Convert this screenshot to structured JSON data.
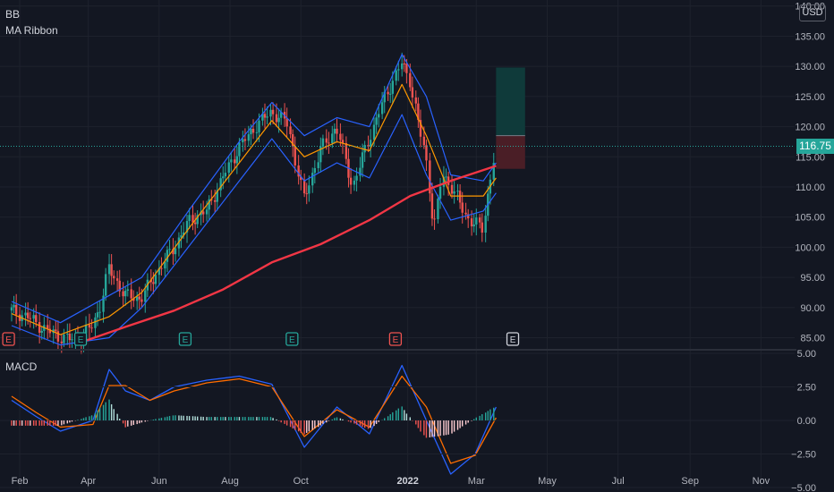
{
  "symbol": "BB",
  "studies": {
    "ribbon": "MA Ribbon",
    "macd": "MACD"
  },
  "currency": "USD",
  "last_price": "116.75",
  "colors": {
    "background": "#131722",
    "grid": "#1e222d",
    "up": "#26a69a",
    "down": "#ef5350",
    "ma_blue": "#2962ff",
    "ma_orange": "#ff9800",
    "ma_red": "#f23645",
    "macd_line": "#2962ff",
    "signal_line": "#ff6d00",
    "target_zone": "#0f3a3a",
    "stop_zone": "#4a1e26"
  },
  "earnings_markers": [
    {
      "label": "E",
      "month": "Jan",
      "kind": "past-down"
    },
    {
      "label": "E",
      "month": "Mar",
      "kind": "past-up"
    },
    {
      "label": "E",
      "month": "Jun",
      "kind": "past-up"
    },
    {
      "label": "E",
      "month": "Sep",
      "kind": "past-up"
    },
    {
      "label": "E",
      "month": "Dec",
      "kind": "past-down"
    },
    {
      "label": "E",
      "month": "Apr",
      "kind": "upcoming"
    }
  ],
  "chart_data": [
    {
      "type": "candlestick",
      "title": "BB",
      "ylim": [
        83,
        141
      ],
      "yticks": [
        "140.00",
        "135.00",
        "130.00",
        "125.00",
        "120.00",
        "115.00",
        "110.00",
        "105.00",
        "100.00",
        "95.00",
        "90.00",
        "85.00"
      ],
      "x_labels": [
        "Feb",
        "Apr",
        "Jun",
        "Aug",
        "Oct",
        "2022",
        "Mar",
        "May",
        "Jul",
        "Sep",
        "Nov"
      ],
      "price_path": [
        [
          "2021-01-25",
          89.5
        ],
        [
          "2021-02-08",
          88.5
        ],
        [
          "2021-02-22",
          86.5
        ],
        [
          "2021-03-08",
          85.2
        ],
        [
          "2021-03-22",
          84.5
        ],
        [
          "2021-04-05",
          87.0
        ],
        [
          "2021-04-12",
          90.5
        ],
        [
          "2021-04-19",
          96.5
        ],
        [
          "2021-05-03",
          92.0
        ],
        [
          "2021-05-17",
          91.5
        ],
        [
          "2021-05-31",
          96.0
        ],
        [
          "2021-06-14",
          100.0
        ],
        [
          "2021-06-28",
          104.5
        ],
        [
          "2021-07-12",
          106.0
        ],
        [
          "2021-07-26",
          111.5
        ],
        [
          "2021-08-09",
          116.5
        ],
        [
          "2021-08-23",
          120.0
        ],
        [
          "2021-09-06",
          122.5
        ],
        [
          "2021-09-20",
          120.5
        ],
        [
          "2021-10-04",
          108.0
        ],
        [
          "2021-10-18",
          116.0
        ],
        [
          "2021-11-01",
          120.0
        ],
        [
          "2021-11-15",
          110.0
        ],
        [
          "2021-11-29",
          118.0
        ],
        [
          "2021-12-13",
          125.0
        ],
        [
          "2021-12-27",
          130.5
        ],
        [
          "2022-01-03",
          128.0
        ],
        [
          "2022-01-10",
          121.0
        ],
        [
          "2022-01-17",
          115.0
        ],
        [
          "2022-01-24",
          103.0
        ],
        [
          "2022-01-31",
          112.0
        ],
        [
          "2022-02-07",
          110.5
        ],
        [
          "2022-02-21",
          105.0
        ],
        [
          "2022-03-07",
          103.0
        ],
        [
          "2022-03-14",
          112.0
        ],
        [
          "2022-03-18",
          116.75
        ]
      ],
      "sma200": [
        [
          "2021-03-22",
          84.0
        ],
        [
          "2021-05-03",
          86.8
        ],
        [
          "2021-06-14",
          89.5
        ],
        [
          "2021-07-26",
          93.0
        ],
        [
          "2021-09-06",
          97.5
        ],
        [
          "2021-10-18",
          100.5
        ],
        [
          "2021-11-29",
          104.5
        ],
        [
          "2022-01-03",
          108.5
        ],
        [
          "2022-02-07",
          111.0
        ],
        [
          "2022-03-18",
          113.5
        ]
      ],
      "bollinger_upper": [
        [
          "2021-01-25",
          91
        ],
        [
          "2021-03-08",
          87.5
        ],
        [
          "2021-04-19",
          92.0
        ],
        [
          "2021-05-17",
          95.0
        ],
        [
          "2021-06-28",
          106.5
        ],
        [
          "2021-08-09",
          117.5
        ],
        [
          "2021-09-06",
          124.0
        ],
        [
          "2021-10-04",
          118.5
        ],
        [
          "2021-11-01",
          121.5
        ],
        [
          "2021-11-29",
          120.0
        ],
        [
          "2021-12-27",
          132.0
        ],
        [
          "2022-01-17",
          125.0
        ],
        [
          "2022-02-07",
          112.0
        ],
        [
          "2022-03-07",
          111.0
        ],
        [
          "2022-03-18",
          114.0
        ]
      ],
      "bollinger_lower": [
        [
          "2021-01-25",
          87
        ],
        [
          "2021-03-08",
          83.8
        ],
        [
          "2021-04-19",
          85.0
        ],
        [
          "2021-05-17",
          90.0
        ],
        [
          "2021-06-28",
          100.5
        ],
        [
          "2021-08-09",
          111.0
        ],
        [
          "2021-09-06",
          118.0
        ],
        [
          "2021-10-04",
          111.0
        ],
        [
          "2021-11-01",
          114.0
        ],
        [
          "2021-11-29",
          111.5
        ],
        [
          "2021-12-27",
          122.0
        ],
        [
          "2022-01-17",
          112.0
        ],
        [
          "2022-02-07",
          104.5
        ],
        [
          "2022-03-07",
          106.0
        ],
        [
          "2022-03-18",
          109.0
        ]
      ],
      "ma_middle": [
        [
          "2021-01-25",
          89
        ],
        [
          "2021-03-08",
          85.5
        ],
        [
          "2021-04-19",
          88.5
        ],
        [
          "2021-05-17",
          92.5
        ],
        [
          "2021-06-28",
          103.5
        ],
        [
          "2021-08-09",
          114.0
        ],
        [
          "2021-09-06",
          121.0
        ],
        [
          "2021-10-04",
          115.0
        ],
        [
          "2021-11-01",
          117.5
        ],
        [
          "2021-11-29",
          116.0
        ],
        [
          "2021-12-27",
          127.0
        ],
        [
          "2022-01-17",
          118.5
        ],
        [
          "2022-02-07",
          108.5
        ],
        [
          "2022-03-07",
          108.5
        ],
        [
          "2022-03-18",
          111.5
        ]
      ],
      "position": {
        "entry": 118.5,
        "target": 129.8,
        "stop": 113.0,
        "start": "2022-03-18",
        "end": "2022-04-12"
      }
    },
    {
      "type": "line",
      "title": "MACD",
      "ylim": [
        -5.2,
        5.2
      ],
      "yticks": [
        "5.00",
        "2.50",
        "0.00",
        "−2.50",
        "−5.00"
      ],
      "series": [
        {
          "name": "MACD",
          "values": [
            [
              "2021-01-25",
              1.5
            ],
            [
              "2021-02-15",
              0.3
            ],
            [
              "2021-03-08",
              -0.8
            ],
            [
              "2021-04-05",
              0.0
            ],
            [
              "2021-04-19",
              3.8
            ],
            [
              "2021-05-03",
              2.2
            ],
            [
              "2021-05-24",
              1.5
            ],
            [
              "2021-06-14",
              2.5
            ],
            [
              "2021-07-12",
              3.0
            ],
            [
              "2021-08-09",
              3.3
            ],
            [
              "2021-09-06",
              2.7
            ],
            [
              "2021-10-04",
              -2.0
            ],
            [
              "2021-11-01",
              1.0
            ],
            [
              "2021-11-29",
              -1.0
            ],
            [
              "2021-12-27",
              4.1
            ],
            [
              "2022-01-17",
              0.0
            ],
            [
              "2022-02-07",
              -4.0
            ],
            [
              "2022-02-28",
              -2.5
            ],
            [
              "2022-03-18",
              1.0
            ]
          ]
        },
        {
          "name": "Signal",
          "values": [
            [
              "2021-01-25",
              1.8
            ],
            [
              "2021-02-15",
              0.6
            ],
            [
              "2021-03-08",
              -0.5
            ],
            [
              "2021-04-05",
              -0.3
            ],
            [
              "2021-04-19",
              2.6
            ],
            [
              "2021-05-03",
              2.6
            ],
            [
              "2021-05-24",
              1.5
            ],
            [
              "2021-06-14",
              2.2
            ],
            [
              "2021-07-12",
              2.8
            ],
            [
              "2021-08-09",
              3.1
            ],
            [
              "2021-09-06",
              2.5
            ],
            [
              "2021-10-04",
              -1.2
            ],
            [
              "2021-11-01",
              0.8
            ],
            [
              "2021-11-29",
              -0.5
            ],
            [
              "2021-12-27",
              3.3
            ],
            [
              "2022-01-17",
              1.0
            ],
            [
              "2022-02-07",
              -3.2
            ],
            [
              "2022-02-28",
              -2.6
            ],
            [
              "2022-03-18",
              0.2
            ]
          ]
        }
      ]
    }
  ]
}
